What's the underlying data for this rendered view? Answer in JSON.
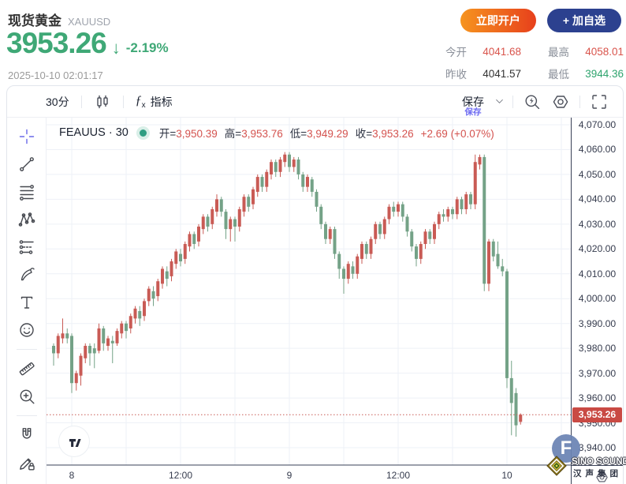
{
  "header": {
    "title": "现货黄金",
    "symbol": "XAUUSD",
    "price": "3953.26",
    "arrow": "↓",
    "change_percent": "-2.19%",
    "timestamp": "2025-10-10 02:01:17",
    "open_account_label": "立即开户",
    "add_watchlist_label": "+ 加自选",
    "price_color": "#3fa876",
    "stats": [
      {
        "label": "今开",
        "value": "4041.68",
        "color": "#d9544c"
      },
      {
        "label": "最高",
        "value": "4058.01",
        "color": "#d9544c"
      },
      {
        "label": "昨收",
        "value": "4041.57",
        "color": "#333333"
      },
      {
        "label": "最低",
        "value": "3944.36",
        "color": "#2fa46e"
      }
    ]
  },
  "toolbar": {
    "interval_label": "30分",
    "fx_glyph": "ƒ",
    "fx_sub": "x",
    "indicators_label": "指标",
    "save_label": "保存",
    "save_tooltip": "保存",
    "icons": [
      "candles-icon",
      "chevron-down-icon",
      "flash-search-icon",
      "settings-icon",
      "fullscreen-icon"
    ]
  },
  "drawing_tools": [
    {
      "icon": "crosshair-icon",
      "active": true
    },
    {
      "icon": "trend-line-icon"
    },
    {
      "icon": "fib-retracement-icon"
    },
    {
      "icon": "xabcd-pattern-icon"
    },
    {
      "icon": "forecast-icon"
    },
    {
      "icon": "brush-icon"
    },
    {
      "icon": "text-icon"
    },
    {
      "icon": "emoji-icon",
      "divider_after": true
    },
    {
      "icon": "ruler-icon"
    },
    {
      "icon": "zoom-in-icon",
      "divider_after": true
    },
    {
      "icon": "magnet-icon"
    },
    {
      "icon": "lock-drawings-icon"
    }
  ],
  "legend": {
    "series_name": "FEAUUS · 30",
    "dot_color": "#2f9e82",
    "items": [
      {
        "label": "开=",
        "value": "3,950.39"
      },
      {
        "label": "高=",
        "value": "3,953.76"
      },
      {
        "label": "低=",
        "value": "3,949.29"
      },
      {
        "label": "收=",
        "value": "3,953.26"
      }
    ],
    "change": "+2.69 (+0.07%)",
    "value_color": "#d4534f"
  },
  "watermarks": {
    "brand_initial": "F",
    "brand_name": "SINO SOUND",
    "brand_name_cn": "汉声集团"
  },
  "chart_data": {
    "type": "candlestick",
    "symbol": "FEAUUS",
    "interval": "30min",
    "y_axis": {
      "min": 3940,
      "max": 4070,
      "tick_step": 10,
      "ticks": [
        4070,
        4060,
        4050,
        4040,
        4030,
        4020,
        4010,
        4000,
        3990,
        3980,
        3970,
        3960,
        3950,
        3940
      ]
    },
    "x_axis": {
      "tick_labels": [
        "8",
        "",
        "12:00",
        "",
        "9",
        "",
        "12:00",
        "",
        "10",
        ""
      ],
      "grid": true
    },
    "current_price": 3953.26,
    "current_price_label": "3,953.26",
    "colors": {
      "up": "#c95b55",
      "down": "#74a287",
      "grid": "#eef1f7",
      "axis_line": "#3a4157",
      "price_tag_bg": "#c94a44",
      "dotted_line": "#c95b55",
      "tick_text": "#353b4d"
    },
    "candles": [
      [
        3981,
        3982,
        3973,
        3978
      ],
      [
        3978,
        3986,
        3976,
        3985
      ],
      [
        3984,
        3992,
        3982,
        3986
      ],
      [
        3986,
        3988,
        3982,
        3984
      ],
      [
        3985,
        3986,
        3962,
        3966
      ],
      [
        3966,
        3971,
        3963,
        3970
      ],
      [
        3969,
        3978,
        3965,
        3977
      ],
      [
        3976,
        3982,
        3974,
        3981
      ],
      [
        3981,
        3982,
        3973,
        3978
      ],
      [
        3980,
        3982,
        3972,
        3978
      ],
      [
        3979,
        3990,
        3978,
        3988
      ],
      [
        3988,
        3989,
        3979,
        3982
      ],
      [
        3981,
        3985,
        3979,
        3984
      ],
      [
        3983,
        3985,
        3974,
        3982
      ],
      [
        3982,
        3988,
        3981,
        3987
      ],
      [
        3986,
        3991,
        3984,
        3990
      ],
      [
        3990,
        3991,
        3984,
        3987
      ],
      [
        3988,
        3994,
        3986,
        3993
      ],
      [
        3992,
        3997,
        3990,
        3996
      ],
      [
        3995,
        3997,
        3989,
        3992
      ],
      [
        3993,
        4000,
        3991,
        3999
      ],
      [
        3999,
        4005,
        3997,
        4004
      ],
      [
        4003,
        4005,
        3997,
        4000
      ],
      [
        4001,
        4008,
        3999,
        4007
      ],
      [
        4006,
        4013,
        4004,
        4012
      ],
      [
        4011,
        4013,
        4005,
        4008
      ],
      [
        4009,
        4016,
        4007,
        4015
      ],
      [
        4014,
        4020,
        4012,
        4019
      ],
      [
        4018,
        4020,
        4013,
        4015
      ],
      [
        4016,
        4023,
        4014,
        4022
      ],
      [
        4021,
        4027,
        4019,
        4026
      ],
      [
        4026,
        4027,
        4020,
        4022
      ],
      [
        4023,
        4030,
        4021,
        4029
      ],
      [
        4028,
        4034,
        4026,
        4033
      ],
      [
        4033,
        4034,
        4027,
        4029
      ],
      [
        4030,
        4037,
        4028,
        4036
      ],
      [
        4035,
        4042,
        4033,
        4040
      ],
      [
        4040,
        4041,
        4033,
        4035
      ],
      [
        4035,
        4036,
        4024,
        4028
      ],
      [
        4028,
        4033,
        4023,
        4032
      ],
      [
        4032,
        4033,
        4023,
        4029
      ],
      [
        4029,
        4037,
        4027,
        4036
      ],
      [
        4035,
        4042,
        4033,
        4041
      ],
      [
        4041,
        4042,
        4035,
        4037
      ],
      [
        4038,
        4045,
        4036,
        4044
      ],
      [
        4043,
        4050,
        4041,
        4049
      ],
      [
        4049,
        4050,
        4043,
        4045
      ],
      [
        4045,
        4052,
        4043,
        4051
      ],
      [
        4050,
        4056,
        4048,
        4055
      ],
      [
        4055,
        4056,
        4049,
        4051
      ],
      [
        4051,
        4057,
        4049,
        4056
      ],
      [
        4055,
        4059,
        4053,
        4058
      ],
      [
        4058,
        4059,
        4051,
        4053
      ],
      [
        4053,
        4057,
        4051,
        4056
      ],
      [
        4056,
        4057,
        4048,
        4050
      ],
      [
        4050,
        4051,
        4043,
        4045
      ],
      [
        4045,
        4050,
        4043,
        4049
      ],
      [
        4048,
        4049,
        4041,
        4043
      ],
      [
        4043,
        4044,
        4035,
        4037
      ],
      [
        4037,
        4038,
        4028,
        4030
      ],
      [
        4030,
        4031,
        4022,
        4024
      ],
      [
        4024,
        4029,
        4022,
        4028
      ],
      [
        4028,
        4029,
        4016,
        4018
      ],
      [
        4018,
        4019,
        4008,
        4012
      ],
      [
        4012,
        4013,
        4002,
        4008
      ],
      [
        4008,
        4015,
        4006,
        4014
      ],
      [
        4013,
        4015,
        4008,
        4010
      ],
      [
        4010,
        4018,
        4008,
        4017
      ],
      [
        4016,
        4023,
        4014,
        4022
      ],
      [
        4022,
        4023,
        4016,
        4018
      ],
      [
        4018,
        4025,
        4016,
        4024
      ],
      [
        4024,
        4031,
        4022,
        4030
      ],
      [
        4030,
        4031,
        4024,
        4026
      ],
      [
        4026,
        4033,
        4024,
        4032
      ],
      [
        4032,
        4038,
        4030,
        4037
      ],
      [
        4037,
        4039,
        4033,
        4035
      ],
      [
        4035,
        4039,
        4033,
        4038
      ],
      [
        4038,
        4039,
        4031,
        4033
      ],
      [
        4033,
        4034,
        4025,
        4027
      ],
      [
        4027,
        4028,
        4019,
        4021
      ],
      [
        4021,
        4022,
        4013,
        4016
      ],
      [
        4016,
        4023,
        4014,
        4022
      ],
      [
        4022,
        4028,
        4020,
        4027
      ],
      [
        4027,
        4028,
        4022,
        4024
      ],
      [
        4024,
        4031,
        4022,
        4030
      ],
      [
        4030,
        4035,
        4028,
        4034
      ],
      [
        4034,
        4036,
        4031,
        4033
      ],
      [
        4033,
        4037,
        4031,
        4036
      ],
      [
        4036,
        4037,
        4032,
        4034
      ],
      [
        4034,
        4041,
        4032,
        4040
      ],
      [
        4040,
        4041,
        4034,
        4036
      ],
      [
        4036,
        4043,
        4034,
        4042
      ],
      [
        4042,
        4043,
        4036,
        4038
      ],
      [
        4038,
        4058,
        4036,
        4055
      ],
      [
        4054,
        4058,
        4052,
        4057
      ],
      [
        4057,
        4058,
        4003,
        4006
      ],
      [
        4006,
        4024,
        4003,
        4023
      ],
      [
        4023,
        4024,
        4015,
        4017
      ],
      [
        4018,
        4023,
        4012,
        4013
      ],
      [
        4013,
        4016,
        4009,
        4011
      ],
      [
        4011,
        4012,
        3964,
        3968
      ],
      [
        3968,
        3975,
        3945,
        3958
      ],
      [
        3962,
        3964,
        3944.4,
        3949
      ],
      [
        3950.4,
        3953.8,
        3949.3,
        3953.3
      ]
    ]
  }
}
